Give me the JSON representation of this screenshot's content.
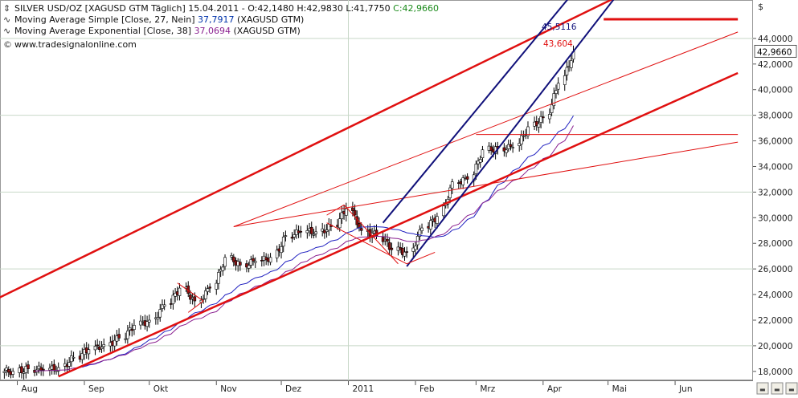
{
  "header": {
    "symbol_icon": "chart-symbol-icon",
    "title": "SILVER USD/OZ [XAGUSD GTM  Täglich] 15.04.2011 - O:42,1480 H:42,9830 L:41,7750",
    "close_label": "C:42,9660",
    "sma_text": "Moving Average Simple [Close, 27, Nein]",
    "sma_value": "37,7917",
    "sma_suffix": "(XAGUSD GTM)",
    "ema_text": "Moving Average Exponential [Close, 38]",
    "ema_value": "37,0694",
    "ema_suffix": "(XAGUSD GTM)",
    "website": "www.tradesignalonline.com",
    "currency": "$"
  },
  "annotations": {
    "upper_target": "45,5116",
    "lower_target": "43,604",
    "last_price": "42,9660"
  },
  "colors": {
    "trend_red": "#e01010",
    "channel_blue": "#10107a",
    "sma": "#2020c0",
    "ema": "#8a2090",
    "up_candle": "#ffffff",
    "down_candle": "#8b1010",
    "grid": "#c8d8c8",
    "current_price_badge": "#ffffff"
  },
  "chart_data": {
    "type": "candlestick",
    "title": "SILVER USD/OZ [XAGUSD GTM  Täglich] 15.04.2011",
    "x_tick_labels": [
      "Aug",
      "Sep",
      "Okt",
      "Nov",
      "Dez",
      "2011",
      "Feb",
      "Mrz",
      "Apr",
      "Mai",
      "Jun"
    ],
    "y_tick_labels": [
      "18,0000",
      "20,0000",
      "22,0000",
      "24,0000",
      "26,0000",
      "28,0000",
      "30,0000",
      "32,0000",
      "34,0000",
      "36,0000",
      "38,0000",
      "40,0000",
      "42,0000",
      "44,0000"
    ],
    "ylim": [
      17.3,
      47.0
    ],
    "grid": true,
    "legend": "top-left",
    "last_bar": {
      "date": "15.04.2011",
      "open": 42.148,
      "high": 42.983,
      "low": 41.775,
      "close": 42.966
    },
    "weekly_closes": [
      {
        "date": "2010-07-30",
        "close": 18.0
      },
      {
        "date": "2010-08-06",
        "close": 18.2
      },
      {
        "date": "2010-08-13",
        "close": 18.1
      },
      {
        "date": "2010-08-20",
        "close": 18.3
      },
      {
        "date": "2010-08-27",
        "close": 19.1
      },
      {
        "date": "2010-09-03",
        "close": 19.7
      },
      {
        "date": "2010-09-10",
        "close": 20.1
      },
      {
        "date": "2010-09-17",
        "close": 20.6
      },
      {
        "date": "2010-09-24",
        "close": 21.6
      },
      {
        "date": "2010-10-01",
        "close": 22.0
      },
      {
        "date": "2010-10-08",
        "close": 23.2
      },
      {
        "date": "2010-10-15",
        "close": 24.5
      },
      {
        "date": "2010-10-22",
        "close": 23.5
      },
      {
        "date": "2010-10-29",
        "close": 24.5
      },
      {
        "date": "2010-11-05",
        "close": 26.9
      },
      {
        "date": "2010-11-12",
        "close": 26.3
      },
      {
        "date": "2010-11-19",
        "close": 26.6
      },
      {
        "date": "2010-11-26",
        "close": 26.9
      },
      {
        "date": "2010-12-03",
        "close": 28.6
      },
      {
        "date": "2010-12-10",
        "close": 28.9
      },
      {
        "date": "2010-12-17",
        "close": 28.9
      },
      {
        "date": "2010-12-24",
        "close": 29.3
      },
      {
        "date": "2010-12-31",
        "close": 30.7
      },
      {
        "date": "2011-01-07",
        "close": 29.0
      },
      {
        "date": "2011-01-14",
        "close": 28.6
      },
      {
        "date": "2011-01-21",
        "close": 27.5
      },
      {
        "date": "2011-01-28",
        "close": 27.3
      },
      {
        "date": "2011-02-04",
        "close": 29.2
      },
      {
        "date": "2011-02-11",
        "close": 30.1
      },
      {
        "date": "2011-02-18",
        "close": 32.8
      },
      {
        "date": "2011-02-25",
        "close": 33.0
      },
      {
        "date": "2011-03-04",
        "close": 35.3
      },
      {
        "date": "2011-03-11",
        "close": 35.4
      },
      {
        "date": "2011-03-18",
        "close": 35.5
      },
      {
        "date": "2011-03-25",
        "close": 37.1
      },
      {
        "date": "2011-04-01",
        "close": 37.8
      },
      {
        "date": "2011-04-08",
        "close": 40.5
      },
      {
        "date": "2011-04-15",
        "close": 42.97
      }
    ],
    "series": [
      {
        "name": "Moving Average Simple [Close, 27, Nein]",
        "last": 37.7917
      },
      {
        "name": "Moving Average Exponential [Close, 38]",
        "last": 37.0694
      }
    ],
    "trendlines": [
      {
        "color": "red",
        "from": {
          "date": "2010-07-12",
          "value": 22.8
        },
        "to": {
          "date": "2011-05-18",
          "value": 48.3
        }
      },
      {
        "color": "red",
        "from": {
          "date": "2010-08-20",
          "value": 17.6
        },
        "to": {
          "date": "2011-06-30",
          "value": 41.3
        }
      },
      {
        "color": "red",
        "from": {
          "date": "2010-11-09",
          "value": 29.3
        },
        "to": {
          "date": "2011-06-30",
          "value": 44.5
        }
      },
      {
        "color": "red",
        "from": {
          "date": "2010-11-09",
          "value": 29.3
        },
        "to": {
          "date": "2011-06-30",
          "value": 35.9
        }
      },
      {
        "color": "red",
        "from": {
          "date": "2011-03-01",
          "value": 36.5
        },
        "to": {
          "date": "2011-06-30",
          "value": 36.5
        }
      },
      {
        "color": "red",
        "from": {
          "date": "2011-04-29",
          "value": 45.5
        },
        "to": {
          "date": "2011-06-30",
          "value": 45.5
        }
      },
      {
        "color": "blue",
        "from": {
          "date": "2011-01-17",
          "value": 29.6
        },
        "to": {
          "date": "2011-04-17",
          "value": 48.0
        }
      },
      {
        "color": "blue",
        "from": {
          "date": "2011-01-28",
          "value": 26.2
        },
        "to": {
          "date": "2011-05-08",
          "value": 48.0
        }
      }
    ]
  }
}
